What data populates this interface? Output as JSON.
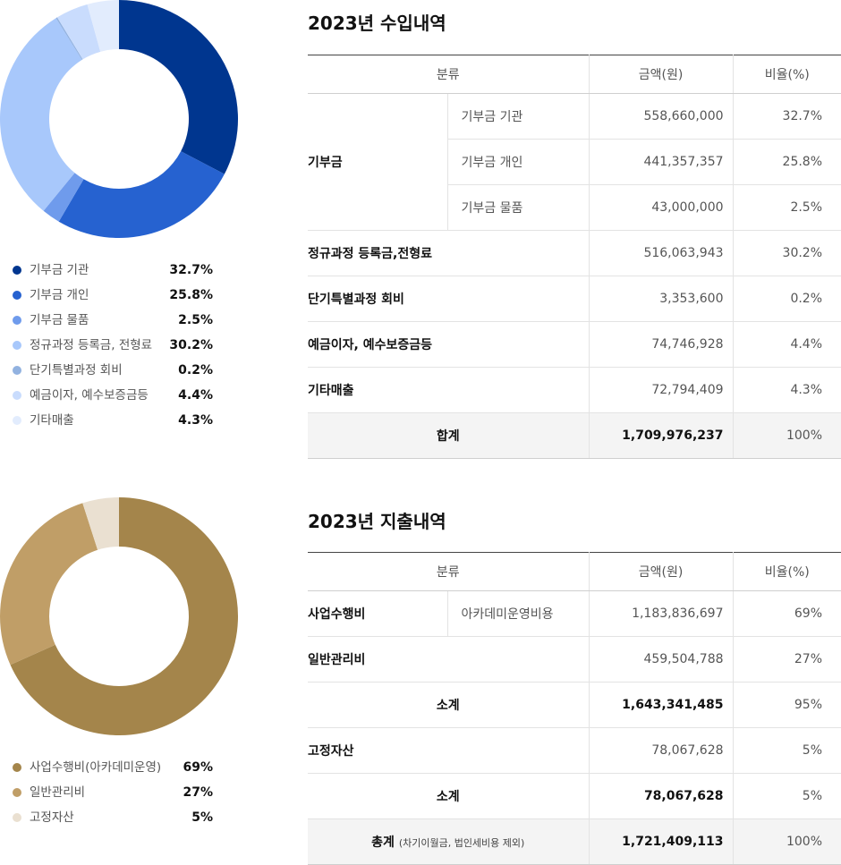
{
  "income": {
    "title": "2023년 수입내역",
    "chart_data": {
      "type": "pie",
      "categories": [
        "기부금 기관",
        "기부금 개인",
        "기부금 물품",
        "정규과정 등록금, 전형료",
        "단기특별과정 회비",
        "예금이자, 예수보증금등",
        "기타매출"
      ],
      "values": [
        32.7,
        25.8,
        2.5,
        30.2,
        0.2,
        4.4,
        4.3
      ],
      "pct_labels": [
        "32.7%",
        "25.8%",
        "2.5%",
        "30.2%",
        "0.2%",
        "4.4%",
        "4.3%"
      ],
      "colors": [
        "#00368f",
        "#2662d0",
        "#6f9bec",
        "#a8c8fb",
        "#92b2e0",
        "#c9dcfd",
        "#e2ecfd"
      ]
    },
    "table": {
      "headers": [
        "분류",
        "금액(원)",
        "비율(%)"
      ],
      "group_label": "기부금",
      "sub_rows": [
        {
          "label": "기부금 기관",
          "amount": "558,660,000",
          "pct": "32.7%"
        },
        {
          "label": "기부금 개인",
          "amount": "441,357,357",
          "pct": "25.8%"
        },
        {
          "label": "기부금 물품",
          "amount": "43,000,000",
          "pct": "2.5%"
        }
      ],
      "rows": [
        {
          "label": "정규과정 등록금,전형료",
          "amount": "516,063,943",
          "pct": "30.2%"
        },
        {
          "label": "단기특별과정 회비",
          "amount": "3,353,600",
          "pct": "0.2%"
        },
        {
          "label": "예금이자, 예수보증금등",
          "amount": "74,746,928",
          "pct": "4.4%"
        },
        {
          "label": "기타매출",
          "amount": "72,794,409",
          "pct": "4.3%"
        }
      ],
      "total": {
        "label": "합계",
        "amount": "1,709,976,237",
        "pct": "100%"
      }
    }
  },
  "expense": {
    "title": "2023년 지출내역",
    "chart_data": {
      "type": "pie",
      "categories": [
        "사업수행비(아카데미운영)",
        "일반관리비",
        "고정자산"
      ],
      "values": [
        69,
        27,
        5
      ],
      "pct_labels": [
        "69%",
        "27%",
        "5%"
      ],
      "colors": [
        "#a4854b",
        "#c09e67",
        "#eae0d1"
      ]
    },
    "table": {
      "headers": [
        "분류",
        "금액(원)",
        "비율(%)"
      ],
      "row1": {
        "label": "사업수행비",
        "sub": "아카데미운영비용",
        "amount": "1,183,836,697",
        "pct": "69%"
      },
      "row2": {
        "label": "일반관리비",
        "amount": "459,504,788",
        "pct": "27%"
      },
      "subtotal1": {
        "label": "소계",
        "amount": "1,643,341,485",
        "pct": "95%"
      },
      "row3": {
        "label": "고정자산",
        "amount": "78,067,628",
        "pct": "5%"
      },
      "subtotal2": {
        "label": "소계",
        "amount": "78,067,628",
        "pct": "5%"
      },
      "total": {
        "label": "총계",
        "note": "(차기이월금, 법인세비용 제외)",
        "amount": "1,721,409,113",
        "pct": "100%"
      }
    }
  }
}
